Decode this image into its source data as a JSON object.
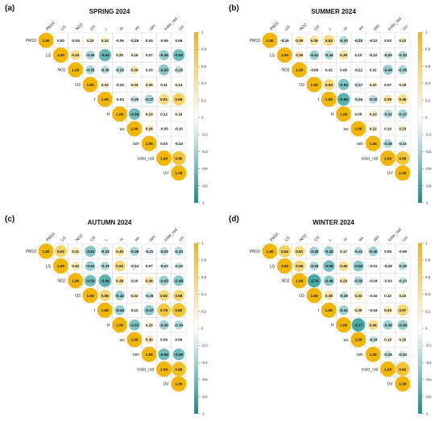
{
  "variables": [
    "PM10",
    "LG",
    "NO2",
    "O3",
    "t",
    "H",
    "ws",
    "rain",
    "solar_rad",
    "UV"
  ],
  "colorscale": {
    "negative": "#0e8f8c",
    "zero": "#ffffff",
    "positive": "#f2b705"
  },
  "colorbar_ticks": [
    "1",
    "0.8",
    "0.6",
    "0.4",
    "0.2",
    "0",
    "-0.2",
    "-0.4",
    "-0.6",
    "-0.8",
    "-1"
  ],
  "chart_data": [
    {
      "type": "heatmap",
      "label": "(a)",
      "title": "SPRING 2024",
      "variables": [
        "PM10",
        "LG",
        "NO2",
        "O3",
        "t",
        "H",
        "ws",
        "rain",
        "solar_rad",
        "UV"
      ],
      "matrix": [
        [
          1.0,
          0.0,
          -0.04,
          0.2,
          0.24,
          -0.06,
          -0.16,
          0.04,
          -0.06,
          0.06
        ],
        [
          null,
          1.0,
          0.44,
          -0.35,
          -0.64,
          0.2,
          0.16,
          0.07,
          -0.45,
          -0.6
        ],
        [
          null,
          null,
          1.0,
          -0.35,
          -0.3,
          -0.29,
          0.3,
          0.03,
          -0.5,
          -0.26
        ],
        [
          null,
          null,
          null,
          1.0,
          0.23,
          -0.1,
          0.24,
          0.25,
          0.11,
          0.14
        ],
        [
          null,
          null,
          null,
          null,
          1.0,
          -0.03,
          -0.25,
          -0.37,
          0.51,
          0.65
        ],
        [
          null,
          null,
          null,
          null,
          null,
          1.0,
          -0.58,
          0.23,
          0.12,
          0.16
        ],
        [
          null,
          null,
          null,
          null,
          null,
          null,
          1.0,
          0.26,
          -0.05,
          -0.1
        ],
        [
          null,
          null,
          null,
          null,
          null,
          null,
          null,
          1.0,
          0.03,
          -0.13
        ],
        [
          null,
          null,
          null,
          null,
          null,
          null,
          null,
          null,
          1.0,
          0.8
        ],
        [
          null,
          null,
          null,
          null,
          null,
          null,
          null,
          null,
          null,
          1.0
        ]
      ]
    },
    {
      "type": "heatmap",
      "label": "(b)",
      "title": "SUMMER 2024",
      "variables": [
        "PM10",
        "LG",
        "NO2",
        "O3",
        "t",
        "H",
        "ws",
        "rain",
        "solar_rad",
        "UV"
      ],
      "matrix": [
        [
          1.0,
          -0.16,
          0.36,
          0.39,
          0.53,
          -0.33,
          -0.18,
          -0.12,
          0.03,
          0.22
        ],
        [
          null,
          1.0,
          0.28,
          -0.41,
          -0.34,
          0.39,
          0.1,
          -0.12,
          -0.25,
          -0.33
        ],
        [
          null,
          null,
          1.0,
          -0.06,
          0.02,
          0.06,
          -0.12,
          0.02,
          -0.44,
          -0.35
        ],
        [
          null,
          null,
          null,
          1.0,
          0.53,
          -0.54,
          -0.17,
          0.2,
          0.07,
          0.18
        ],
        [
          null,
          null,
          null,
          null,
          1.0,
          -0.69,
          -0.16,
          -0.32,
          0.36,
          0.46
        ],
        [
          null,
          null,
          null,
          null,
          null,
          1.0,
          0.05,
          0.23,
          -0.32,
          -0.37
        ],
        [
          null,
          null,
          null,
          null,
          null,
          null,
          1.0,
          0.22,
          0.1,
          0.23
        ],
        [
          null,
          null,
          null,
          null,
          null,
          null,
          null,
          1.0,
          -0.35,
          -0.21
        ],
        [
          null,
          null,
          null,
          null,
          null,
          null,
          null,
          null,
          1.0,
          0.8
        ],
        [
          null,
          null,
          null,
          null,
          null,
          null,
          null,
          null,
          null,
          1.0
        ]
      ]
    },
    {
      "type": "heatmap",
      "label": "(c)",
      "title": "AUTUMN 2024",
      "variables": [
        "PM10",
        "LG",
        "NO2",
        "O3",
        "t",
        "H",
        "ws",
        "rain",
        "solar_rad",
        "UV"
      ],
      "matrix": [
        [
          1.0,
          0.62,
          0.31,
          -0.52,
          -0.33,
          0.4,
          -0.36,
          -0.21,
          -0.29,
          -0.33
        ],
        [
          null,
          1.0,
          0.32,
          -0.42,
          -0.33,
          0.53,
          -0.14,
          0.07,
          -0.23,
          -0.23
        ],
        [
          null,
          null,
          1.0,
          -0.59,
          -0.68,
          0.38,
          0.0,
          0.36,
          -0.43,
          -0.49
        ],
        [
          null,
          null,
          null,
          1.0,
          0.56,
          -0.42,
          0.22,
          -0.25,
          0.52,
          0.56
        ],
        [
          null,
          null,
          null,
          null,
          1.0,
          -0.44,
          0.12,
          -0.47,
          0.76,
          0.83
        ],
        [
          null,
          null,
          null,
          null,
          null,
          1.0,
          -0.53,
          0.2,
          -0.4,
          -0.34
        ],
        [
          null,
          null,
          null,
          null,
          null,
          null,
          1.0,
          0.3,
          0.09,
          0.0
        ],
        [
          null,
          null,
          null,
          null,
          null,
          null,
          null,
          1.0,
          -0.59,
          -0.59
        ],
        [
          null,
          null,
          null,
          null,
          null,
          null,
          null,
          null,
          1.0,
          0.89
        ],
        [
          null,
          null,
          null,
          null,
          null,
          null,
          null,
          null,
          null,
          1.0
        ]
      ]
    },
    {
      "type": "heatmap",
      "label": "(d)",
      "title": "WINTER 2024",
      "variables": [
        "PM10",
        "LG",
        "NO2",
        "O3",
        "t",
        "H",
        "ws",
        "rain",
        "solar_rad",
        "UV"
      ],
      "matrix": [
        [
          1.0,
          0.64,
          0.51,
          -0.38,
          -0.43,
          0.17,
          -0.31,
          -0.4,
          0.05,
          -0.09
        ],
        [
          null,
          1.0,
          0.56,
          -0.35,
          -0.58,
          0.45,
          -0.5,
          -0.01,
          -0.15,
          -0.3
        ],
        [
          null,
          null,
          1.0,
          -0.76,
          -0.48,
          0.29,
          -0.35,
          -0.04,
          -0.03,
          -0.23
        ],
        [
          null,
          null,
          null,
          1.0,
          0.38,
          -0.28,
          0.34,
          -0.02,
          0.12,
          0.22
        ],
        [
          null,
          null,
          null,
          null,
          1.0,
          -0.41,
          0.3,
          -0.04,
          0.33,
          0.57
        ],
        [
          null,
          null,
          null,
          null,
          null,
          1.0,
          -0.77,
          0.46,
          -0.4,
          -0.44
        ],
        [
          null,
          null,
          null,
          null,
          null,
          null,
          1.0,
          -0.24,
          0.19,
          0.2
        ],
        [
          null,
          null,
          null,
          null,
          null,
          null,
          null,
          1.0,
          -0.26,
          -0.24
        ],
        [
          null,
          null,
          null,
          null,
          null,
          null,
          null,
          null,
          1.0,
          0.82
        ],
        [
          null,
          null,
          null,
          null,
          null,
          null,
          null,
          null,
          null,
          1.0
        ]
      ]
    }
  ]
}
